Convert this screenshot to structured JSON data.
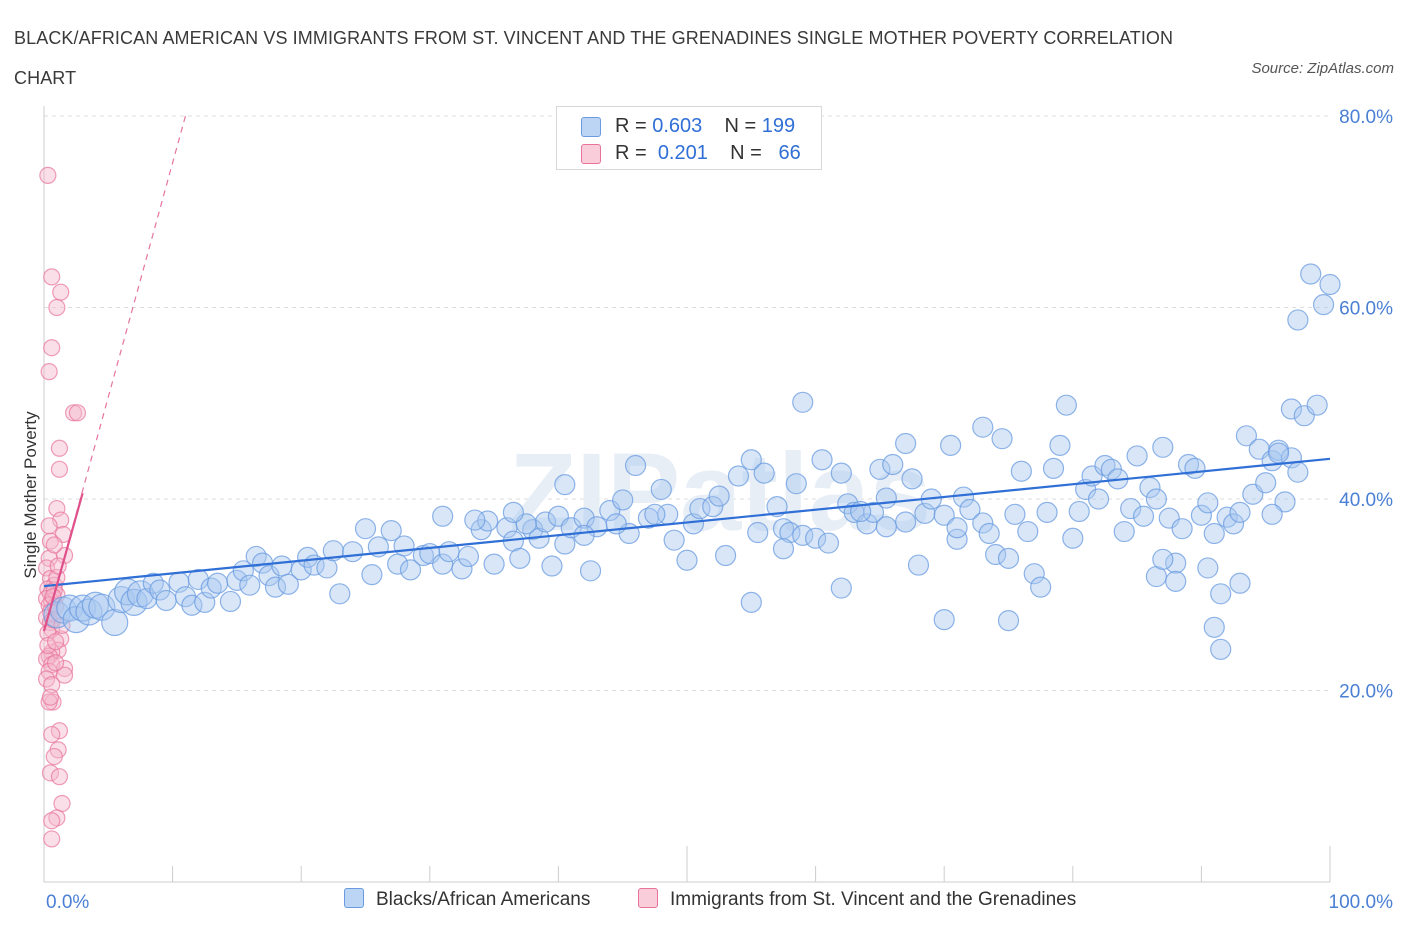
{
  "title": "BLACK/AFRICAN AMERICAN VS IMMIGRANTS FROM ST. VINCENT AND THE GRENADINES SINGLE MOTHER POVERTY CORRELATION CHART",
  "source": "Source: ZipAtlas.com",
  "watermark": "ZIPatlas",
  "colors": {
    "blue_fill": "#a9c8f0",
    "blue_stroke": "#6a9be0",
    "blue_line": "#2f6fd6",
    "pink_fill": "#f5b8cc",
    "pink_stroke": "#e8739b",
    "pink_line": "#e0508a",
    "tick_text": "#4a7fd4",
    "grid": "#dddddd"
  },
  "legend": {
    "rows": [
      {
        "r_label": "R =",
        "r_value": "0.603",
        "n_label": "N =",
        "n_value": "199"
      },
      {
        "r_label": "R =",
        "r_value": "0.201",
        "n_label": "N =",
        "n_value": "66"
      }
    ]
  },
  "chart_data": {
    "type": "scatter",
    "title": "BLACK/AFRICAN AMERICAN VS IMMIGRANTS FROM ST. VINCENT AND THE GRENADINES SINGLE MOTHER POVERTY CORRELATION CHART",
    "xlabel": "",
    "ylabel": "Single Mother Poverty",
    "xlim": [
      0,
      100
    ],
    "ylim": [
      0,
      80
    ],
    "x_tick_labels": [
      "0.0%",
      "100.0%"
    ],
    "y_ticks": [
      20,
      40,
      60,
      80
    ],
    "y_tick_labels": [
      "20.0%",
      "40.0%",
      "60.0%",
      "80.0%"
    ],
    "grid": true,
    "legend_position": "top-center",
    "series": [
      {
        "name": "Blacks/African Americans",
        "R": 0.603,
        "N": 199,
        "trend": {
          "x": [
            0,
            100
          ],
          "y": [
            30.9,
            44.2
          ]
        },
        "points": [
          [
            1.0,
            27.9
          ],
          [
            1.5,
            28.4
          ],
          [
            2.0,
            28.6
          ],
          [
            2.5,
            27.4
          ],
          [
            3.0,
            28.6
          ],
          [
            3.5,
            28.2
          ],
          [
            4.0,
            28.9
          ],
          [
            4.5,
            28.7
          ],
          [
            5.5,
            27.1
          ],
          [
            6.0,
            29.5
          ],
          [
            6.5,
            30.3
          ],
          [
            7.0,
            29.2
          ],
          [
            7.5,
            30.1
          ],
          [
            8.0,
            29.6
          ],
          [
            8.5,
            31.2
          ],
          [
            9.0,
            30.5
          ],
          [
            9.5,
            29.4
          ],
          [
            10.5,
            31.3
          ],
          [
            11.0,
            29.8
          ],
          [
            11.5,
            28.9
          ],
          [
            12.0,
            31.6
          ],
          [
            12.5,
            29.2
          ],
          [
            13.0,
            30.7
          ],
          [
            13.5,
            31.2
          ],
          [
            14.5,
            29.3
          ],
          [
            15.0,
            31.5
          ],
          [
            15.5,
            32.5
          ],
          [
            16.0,
            31.0
          ],
          [
            16.5,
            34.0
          ],
          [
            17.0,
            33.3
          ],
          [
            17.5,
            32.0
          ],
          [
            18.0,
            30.8
          ],
          [
            18.5,
            33.0
          ],
          [
            19.0,
            31.1
          ],
          [
            20.0,
            32.6
          ],
          [
            20.5,
            33.9
          ],
          [
            21.0,
            33.1
          ],
          [
            22.0,
            32.8
          ],
          [
            22.5,
            34.6
          ],
          [
            23.0,
            30.1
          ],
          [
            24.0,
            34.5
          ],
          [
            25.0,
            36.9
          ],
          [
            25.5,
            32.1
          ],
          [
            26.0,
            35.0
          ],
          [
            27.0,
            36.7
          ],
          [
            27.5,
            33.2
          ],
          [
            28.0,
            35.1
          ],
          [
            28.5,
            32.6
          ],
          [
            29.5,
            34.1
          ],
          [
            30.0,
            34.3
          ],
          [
            31.0,
            33.2
          ],
          [
            31.5,
            34.5
          ],
          [
            32.5,
            32.7
          ],
          [
            33.0,
            34.0
          ],
          [
            34.0,
            36.8
          ],
          [
            34.5,
            37.7
          ],
          [
            35.0,
            33.2
          ],
          [
            36.0,
            37.0
          ],
          [
            36.5,
            35.6
          ],
          [
            37.0,
            33.8
          ],
          [
            38.0,
            36.8
          ],
          [
            38.5,
            35.9
          ],
          [
            39.0,
            37.6
          ],
          [
            40.0,
            38.2
          ],
          [
            40.5,
            35.3
          ],
          [
            41.0,
            37.0
          ],
          [
            42.0,
            38.0
          ],
          [
            42.5,
            32.5
          ],
          [
            43.0,
            37.1
          ],
          [
            44.0,
            38.8
          ],
          [
            45.0,
            39.9
          ],
          [
            45.5,
            36.4
          ],
          [
            46.0,
            43.5
          ],
          [
            47.0,
            38.0
          ],
          [
            48.0,
            41.0
          ],
          [
            48.5,
            38.4
          ],
          [
            49.0,
            35.7
          ],
          [
            50.0,
            33.6
          ],
          [
            50.5,
            37.4
          ],
          [
            51.0,
            39.0
          ],
          [
            52.0,
            39.2
          ],
          [
            52.5,
            40.3
          ],
          [
            53.0,
            34.1
          ],
          [
            54.0,
            42.4
          ],
          [
            55.0,
            44.1
          ],
          [
            55.5,
            36.5
          ],
          [
            56.0,
            42.7
          ],
          [
            57.0,
            39.2
          ],
          [
            57.5,
            36.9
          ],
          [
            58.0,
            36.5
          ],
          [
            58.5,
            41.6
          ],
          [
            59.0,
            36.2
          ],
          [
            60.0,
            35.9
          ],
          [
            60.5,
            44.1
          ],
          [
            61.0,
            35.4
          ],
          [
            62.0,
            42.7
          ],
          [
            62.5,
            39.5
          ],
          [
            63.0,
            38.6
          ],
          [
            64.0,
            37.4
          ],
          [
            64.5,
            38.6
          ],
          [
            65.0,
            43.1
          ],
          [
            65.5,
            40.1
          ],
          [
            66.0,
            43.6
          ],
          [
            67.0,
            37.6
          ],
          [
            67.5,
            42.1
          ],
          [
            68.0,
            33.1
          ],
          [
            68.5,
            38.5
          ],
          [
            69.0,
            40.0
          ],
          [
            70.0,
            38.3
          ],
          [
            70.5,
            45.6
          ],
          [
            71.0,
            35.8
          ],
          [
            71.5,
            40.2
          ],
          [
            72.0,
            38.9
          ],
          [
            73.0,
            37.5
          ],
          [
            73.5,
            36.4
          ],
          [
            74.0,
            34.2
          ],
          [
            75.0,
            33.8
          ],
          [
            75.5,
            38.4
          ],
          [
            76.0,
            42.9
          ],
          [
            76.5,
            36.6
          ],
          [
            77.0,
            32.2
          ],
          [
            78.0,
            38.6
          ],
          [
            78.5,
            43.2
          ],
          [
            79.0,
            45.6
          ],
          [
            80.0,
            35.9
          ],
          [
            80.5,
            38.7
          ],
          [
            81.0,
            41.0
          ],
          [
            81.5,
            42.4
          ],
          [
            82.0,
            40.0
          ],
          [
            82.5,
            43.5
          ],
          [
            83.0,
            43.1
          ],
          [
            83.5,
            42.1
          ],
          [
            84.0,
            36.6
          ],
          [
            84.5,
            39.0
          ],
          [
            85.0,
            44.5
          ],
          [
            85.5,
            38.2
          ],
          [
            86.0,
            41.2
          ],
          [
            86.5,
            40.0
          ],
          [
            87.0,
            45.4
          ],
          [
            87.5,
            38.0
          ],
          [
            88.0,
            33.3
          ],
          [
            88.5,
            36.9
          ],
          [
            89.0,
            43.6
          ],
          [
            89.5,
            43.2
          ],
          [
            90.0,
            38.3
          ],
          [
            90.5,
            39.6
          ],
          [
            91.0,
            36.4
          ],
          [
            91.5,
            30.1
          ],
          [
            92.0,
            38.1
          ],
          [
            92.5,
            37.4
          ],
          [
            93.0,
            38.6
          ],
          [
            93.5,
            46.6
          ],
          [
            94.0,
            40.5
          ],
          [
            94.5,
            45.2
          ],
          [
            95.0,
            41.7
          ],
          [
            95.5,
            44.0
          ],
          [
            96.0,
            45.1
          ],
          [
            96.5,
            39.7
          ],
          [
            97.0,
            44.3
          ],
          [
            97.5,
            42.8
          ],
          [
            70.0,
            27.4
          ],
          [
            75.0,
            27.3
          ],
          [
            77.5,
            30.8
          ],
          [
            86.5,
            31.9
          ],
          [
            87.0,
            33.7
          ],
          [
            88.0,
            31.4
          ],
          [
            90.5,
            32.8
          ],
          [
            91.0,
            26.6
          ],
          [
            91.5,
            24.3
          ],
          [
            93.0,
            31.2
          ],
          [
            95.5,
            38.4
          ],
          [
            96.0,
            44.8
          ],
          [
            97.0,
            49.4
          ],
          [
            98.0,
            48.7
          ],
          [
            99.0,
            49.8
          ],
          [
            97.5,
            58.7
          ],
          [
            98.5,
            63.5
          ],
          [
            99.5,
            60.3
          ],
          [
            100.0,
            62.4
          ],
          [
            73.0,
            47.5
          ],
          [
            79.5,
            49.8
          ],
          [
            59.0,
            50.1
          ],
          [
            55.0,
            29.2
          ],
          [
            31.0,
            38.2
          ],
          [
            39.5,
            33.0
          ],
          [
            33.5,
            37.8
          ],
          [
            62.0,
            30.7
          ],
          [
            65.5,
            37.1
          ],
          [
            71.0,
            37.0
          ],
          [
            74.5,
            46.3
          ],
          [
            67.0,
            45.8
          ],
          [
            63.5,
            38.7
          ],
          [
            57.5,
            34.8
          ],
          [
            47.5,
            38.4
          ],
          [
            44.5,
            37.4
          ],
          [
            42.0,
            36.2
          ],
          [
            40.5,
            41.5
          ],
          [
            37.5,
            37.4
          ],
          [
            36.5,
            38.6
          ]
        ]
      },
      {
        "name": "Immigrants from St. Vincent and the Grenadines",
        "R": 0.201,
        "N": 66,
        "trend": {
          "x": [
            0,
            3.0
          ],
          "y": [
            26.2,
            40.6
          ]
        },
        "trend_extended": {
          "x": [
            0,
            11.0
          ],
          "y": [
            26.2,
            80.0
          ]
        },
        "points": [
          [
            0.3,
            73.8
          ],
          [
            0.6,
            63.2
          ],
          [
            1.3,
            61.6
          ],
          [
            1.0,
            60.0
          ],
          [
            0.6,
            55.8
          ],
          [
            0.4,
            53.3
          ],
          [
            2.3,
            49.0
          ],
          [
            2.6,
            49.0
          ],
          [
            1.2,
            45.3
          ],
          [
            1.2,
            43.1
          ],
          [
            1.0,
            39.0
          ],
          [
            1.3,
            37.8
          ],
          [
            1.5,
            36.3
          ],
          [
            0.5,
            35.6
          ],
          [
            1.6,
            34.1
          ],
          [
            0.4,
            33.8
          ],
          [
            0.2,
            32.8
          ],
          [
            0.5,
            31.7
          ],
          [
            0.8,
            31.0
          ],
          [
            0.3,
            30.6
          ],
          [
            0.5,
            30.1
          ],
          [
            1.0,
            30.0
          ],
          [
            0.2,
            29.6
          ],
          [
            0.6,
            29.3
          ],
          [
            0.4,
            28.9
          ],
          [
            0.5,
            28.2
          ],
          [
            0.2,
            27.6
          ],
          [
            0.5,
            27.1
          ],
          [
            0.6,
            26.4
          ],
          [
            0.3,
            26.0
          ],
          [
            1.3,
            25.4
          ],
          [
            1.1,
            24.2
          ],
          [
            0.6,
            24.0
          ],
          [
            0.4,
            23.6
          ],
          [
            0.2,
            23.3
          ],
          [
            0.6,
            22.7
          ],
          [
            1.6,
            22.3
          ],
          [
            0.4,
            22.0
          ],
          [
            1.6,
            21.6
          ],
          [
            0.2,
            21.2
          ],
          [
            0.6,
            20.6
          ],
          [
            0.7,
            18.8
          ],
          [
            0.4,
            18.8
          ],
          [
            1.2,
            15.8
          ],
          [
            0.6,
            15.4
          ],
          [
            1.1,
            13.8
          ],
          [
            0.8,
            13.1
          ],
          [
            0.5,
            11.4
          ],
          [
            1.2,
            11.0
          ],
          [
            1.4,
            8.2
          ],
          [
            1.0,
            6.7
          ],
          [
            0.6,
            6.4
          ],
          [
            0.6,
            4.5
          ],
          [
            0.8,
            30.5
          ],
          [
            0.9,
            28.8
          ],
          [
            0.7,
            27.4
          ],
          [
            1.0,
            31.8
          ],
          [
            0.3,
            24.7
          ],
          [
            0.9,
            22.9
          ],
          [
            0.5,
            19.3
          ],
          [
            1.4,
            26.8
          ],
          [
            0.7,
            29.8
          ],
          [
            1.1,
            33.0
          ],
          [
            0.8,
            35.2
          ],
          [
            0.4,
            37.2
          ],
          [
            0.9,
            25.1
          ]
        ]
      }
    ],
    "bottom_legend": [
      "Blacks/African Americans",
      "Immigrants from St. Vincent and the Grenadines"
    ]
  }
}
